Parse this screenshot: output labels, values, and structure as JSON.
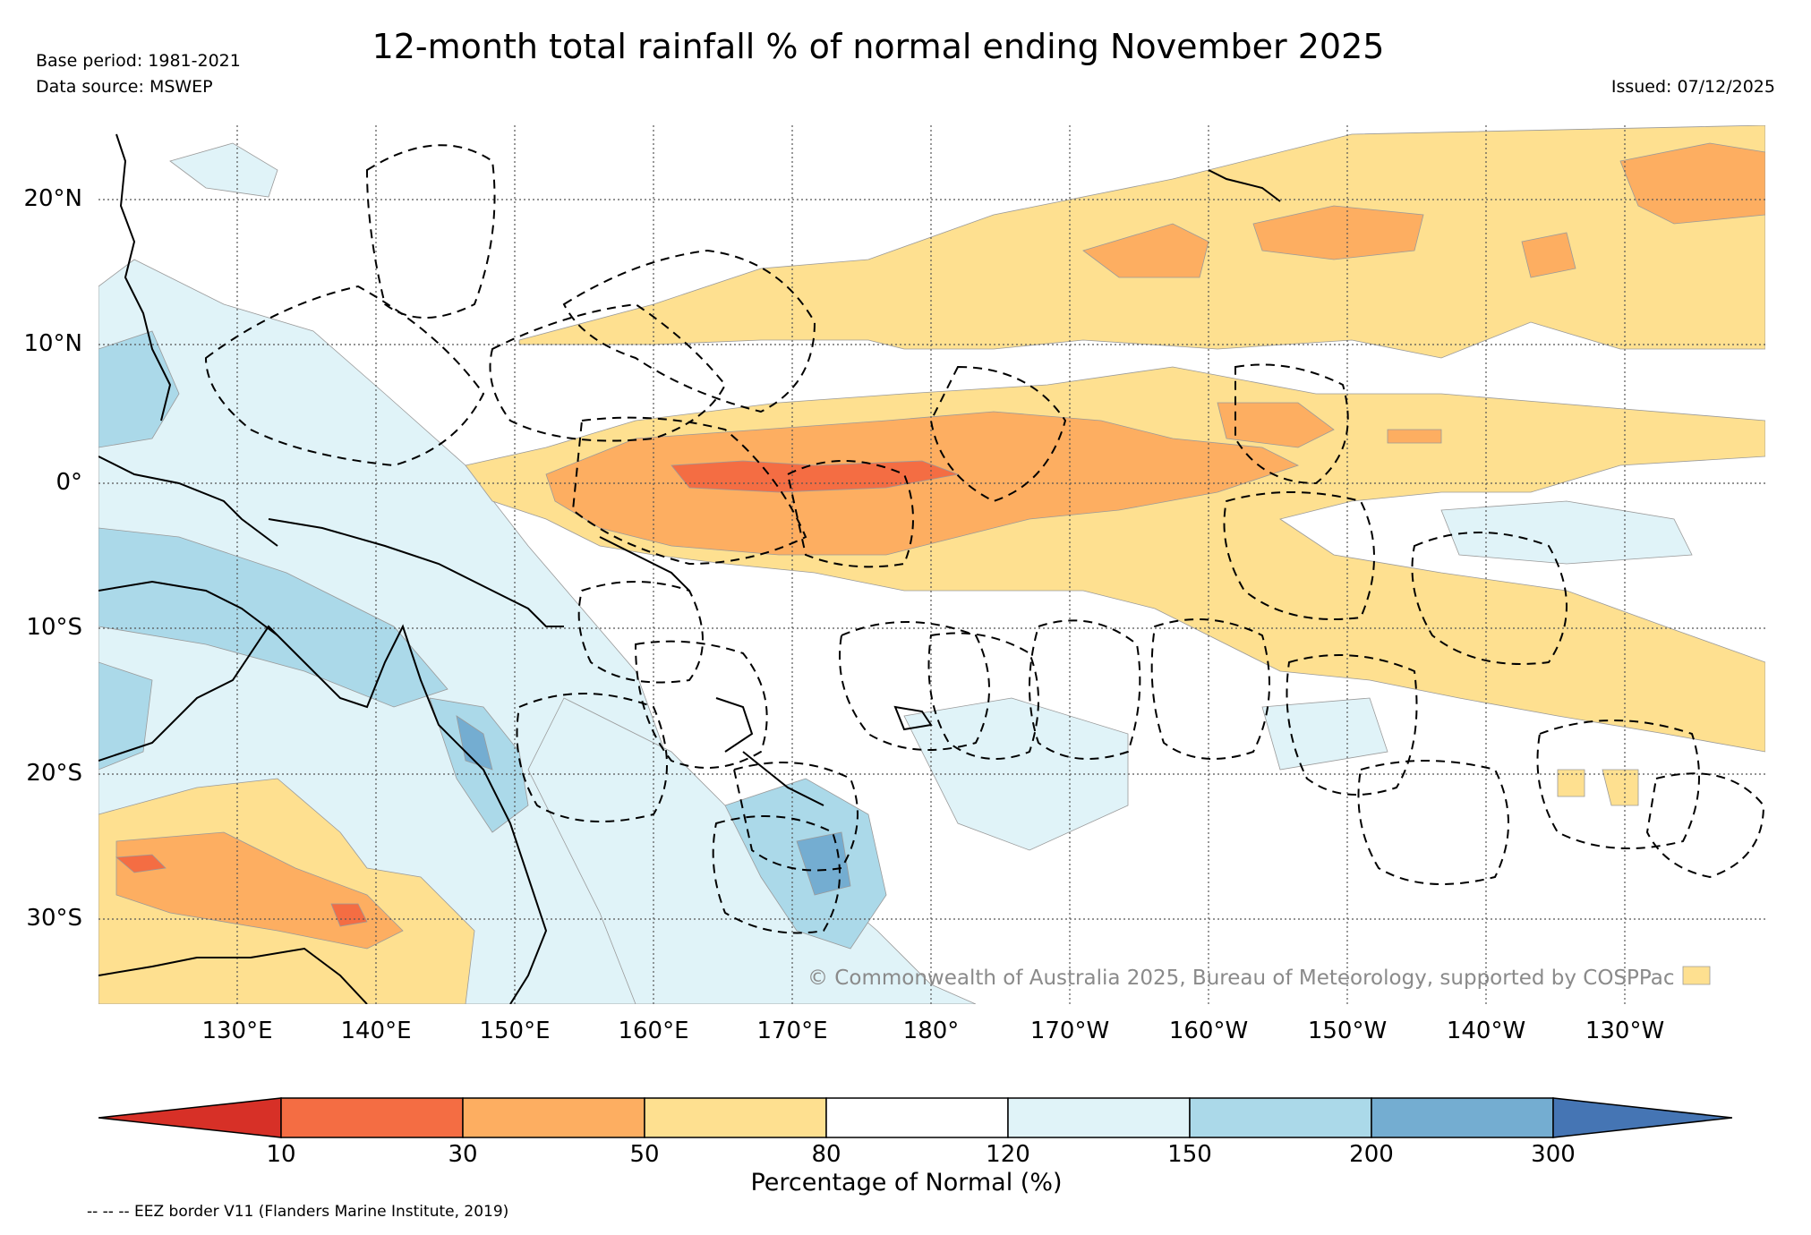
{
  "header": {
    "title": "12-month total rainfall % of normal ending November 2025",
    "base_period": "Base period: 1981-2021",
    "data_source": "Data source: MSWEP",
    "issued": "Issued: 07/12/2025"
  },
  "map": {
    "extent": {
      "lon_min": 120,
      "lon_max": 240,
      "lat_min": -36,
      "lat_max": 25
    },
    "lat_labels": [
      {
        "label": "20°N",
        "lat": 20
      },
      {
        "label": "10°N",
        "lat": 10
      },
      {
        "label": "0°",
        "lat": 0
      },
      {
        "label": "10°S",
        "lat": -10
      },
      {
        "label": "20°S",
        "lat": -20
      },
      {
        "label": "30°S",
        "lat": -30
      }
    ],
    "lon_labels": [
      {
        "label": "130°E",
        "lon": 130
      },
      {
        "label": "140°E",
        "lon": 140
      },
      {
        "label": "150°E",
        "lon": 150
      },
      {
        "label": "160°E",
        "lon": 160
      },
      {
        "label": "170°E",
        "lon": 170
      },
      {
        "label": "180°",
        "lon": 180
      },
      {
        "label": "170°W",
        "lon": 190
      },
      {
        "label": "160°W",
        "lon": 200
      },
      {
        "label": "150°W",
        "lon": 210
      },
      {
        "label": "140°W",
        "lon": 220
      },
      {
        "label": "130°W",
        "lon": 230
      }
    ],
    "copyright": "© Commonwealth of Australia 2025, Bureau of Meteorology, supported by COSPPac"
  },
  "colorbar": {
    "label": "Percentage of Normal (%)",
    "bins": [
      {
        "from": null,
        "to": 10,
        "color": "#d73027"
      },
      {
        "from": 10,
        "to": 30,
        "color": "#f46d43"
      },
      {
        "from": 30,
        "to": 50,
        "color": "#fdae61"
      },
      {
        "from": 50,
        "to": 80,
        "color": "#fee090"
      },
      {
        "from": 80,
        "to": 120,
        "color": "#ffffff"
      },
      {
        "from": 120,
        "to": 150,
        "color": "#e0f3f8"
      },
      {
        "from": 150,
        "to": 200,
        "color": "#abd9e9"
      },
      {
        "from": 200,
        "to": 300,
        "color": "#74add1"
      },
      {
        "from": 300,
        "to": null,
        "color": "#4575b4"
      }
    ],
    "ticks": [
      "10",
      "30",
      "50",
      "80",
      "120",
      "150",
      "200",
      "300"
    ]
  },
  "footnote": "-- -- -- EEZ border V11 (Flanders Marine Institute, 2019)"
}
